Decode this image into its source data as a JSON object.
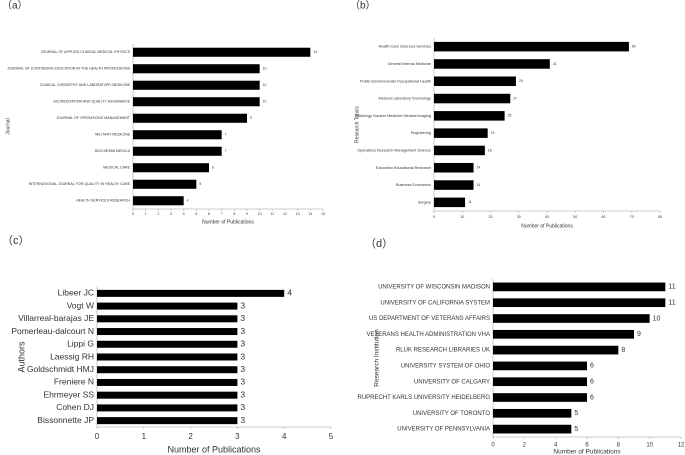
{
  "chart_data": [
    {
      "type": "bar",
      "orientation": "horizontal",
      "label": "（a）",
      "xlabel": "Number of Publications",
      "ylabel": "Journal",
      "color": "#000000",
      "categories": [
        "JOURNAL OF APPLIED CLINICAL MEDICAL PHYSICS",
        "JOURNAL OF CONTINUING EDUCATION IN THE HEALTH PROFESSIONS",
        "CLINICAL CHEMISTRY AND LABORATORY MEDICINE",
        "ACCREDITATION AND QUALITY ASSURANCE",
        "JOURNAL OF OPERATIONS MANAGEMENT",
        "MILITARY MEDICINE",
        "BIOCHEMIA MEDICA",
        "MEDICAL CARE",
        "INTERNATIONAL JOURNAL FOR QUALITY IN HEALTH CARE",
        "HEALTH SERVICES RESEARCH"
      ],
      "values": [
        14,
        10,
        10,
        10,
        9,
        7,
        7,
        6,
        5,
        4
      ],
      "xlim": [
        0,
        15
      ],
      "xticks": [
        0,
        1,
        2,
        3,
        4,
        5,
        6,
        7,
        8,
        9,
        10,
        11,
        12,
        13,
        14,
        15
      ]
    },
    {
      "type": "bar",
      "orientation": "horizontal",
      "label": "（b）",
      "xlabel": "Number of Publications",
      "ylabel": "Research Topics",
      "color": "#000000",
      "categories": [
        "Health Care Sciences Services",
        "General Internal Medicine",
        "Public Environmental Occupational Health",
        "Medical Laboratory Technology",
        "Radiology Nuclear Medicine Medical Imaging",
        "Engineering",
        "Operations Research Management Science",
        "Education Educational Research",
        "Business Economics",
        "Surgery"
      ],
      "values": [
        69,
        41,
        29,
        27,
        25,
        19,
        18,
        14,
        14,
        11
      ],
      "xlim": [
        0,
        80
      ],
      "xticks": [
        0,
        10,
        20,
        30,
        40,
        50,
        60,
        70,
        80
      ]
    },
    {
      "type": "bar",
      "orientation": "horizontal",
      "label": "（c）",
      "xlabel": "Number of Publications",
      "ylabel": "Authors",
      "color": "#000000",
      "categories": [
        "Libeer JC",
        "Vogt W",
        "Villarreal-barajas JE",
        "Pomerleau-dalcourt N",
        "Lippi G",
        "Laessig RH",
        "Goldschmidt HMJ",
        "Freniere N",
        "Ehrmeyer SS",
        "Cohen DJ",
        "Bissonnette JP"
      ],
      "values": [
        4,
        3,
        3,
        3,
        3,
        3,
        3,
        3,
        3,
        3,
        3
      ],
      "xlim": [
        0,
        5
      ],
      "xticks": [
        0,
        1,
        2,
        3,
        4,
        5
      ]
    },
    {
      "type": "bar",
      "orientation": "horizontal",
      "label": "（d）",
      "xlabel": "Number of Publications",
      "ylabel": "Research Institution",
      "color": "#000000",
      "categories": [
        "UNIVERSITY OF WISCONSIN MADISON",
        "UNIVERSITY OF CALIFORNIA SYSTEM",
        "US DEPARTMENT OF VETERANS AFFAIRS",
        "VETERANS HEALTH ADMINISTRATION VHA",
        "RLUK RESEARCH LIBRARIES UK",
        "UNIVERSITY SYSTEM OF OHIO",
        "UNIVERSITY OF CALGARY",
        "RUPRECHT KARLS UNIVERSITY HEIDELBERG",
        "UNIVERSITY OF TORONTO",
        "UNIVERSITY OF PENNSYLVANIA"
      ],
      "values": [
        11,
        11,
        10,
        9,
        8,
        6,
        6,
        6,
        5,
        5
      ],
      "xlim": [
        0,
        12
      ],
      "xticks": [
        0,
        2,
        4,
        6,
        8,
        10,
        12
      ]
    }
  ]
}
